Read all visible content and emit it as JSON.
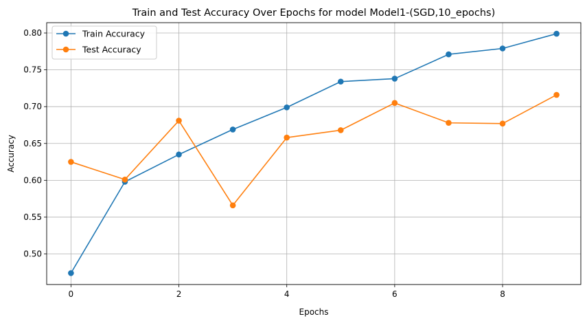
{
  "chart_data": {
    "type": "line",
    "title": "Train and Test Accuracy Over Epochs for model Model1-(SGD,10_epochs)",
    "xlabel": "Epochs",
    "ylabel": "Accuracy",
    "x": [
      0,
      1,
      2,
      3,
      4,
      5,
      6,
      7,
      8,
      9
    ],
    "xlim": [
      -0.45,
      9.45
    ],
    "ylim": [
      0.4585,
      0.814
    ],
    "xticks": [
      0,
      2,
      4,
      6,
      8
    ],
    "xtick_labels": [
      "0",
      "2",
      "4",
      "6",
      "8"
    ],
    "yticks": [
      0.5,
      0.55,
      0.6,
      0.65,
      0.7,
      0.75,
      0.8
    ],
    "ytick_labels": [
      "0.50",
      "0.55",
      "0.60",
      "0.65",
      "0.70",
      "0.75",
      "0.80"
    ],
    "grid": true,
    "legend_position": "top-left",
    "series": [
      {
        "name": "Train Accuracy",
        "color": "#1f77b4",
        "marker": "circle",
        "values": [
          0.474,
          0.598,
          0.635,
          0.669,
          0.699,
          0.734,
          0.738,
          0.771,
          0.779,
          0.799
        ]
      },
      {
        "name": "Test Accuracy",
        "color": "#ff7f0e",
        "marker": "circle",
        "values": [
          0.625,
          0.601,
          0.681,
          0.566,
          0.658,
          0.668,
          0.705,
          0.678,
          0.677,
          0.716
        ]
      }
    ]
  }
}
